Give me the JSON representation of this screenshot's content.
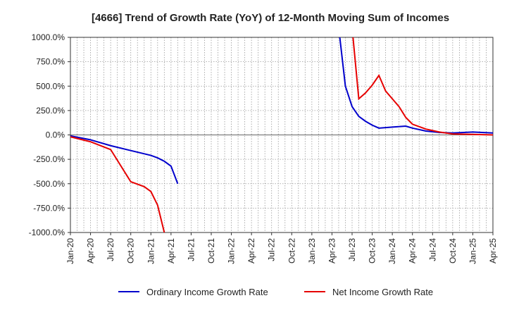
{
  "chart_data": {
    "type": "line",
    "title": "[4666]  Trend of Growth Rate (YoY) of 12-Month Moving Sum of Incomes",
    "xlabel": "",
    "ylabel": "",
    "ylim": [
      -1000,
      1000
    ],
    "y_ticks": [
      "1000.0%",
      "750.0%",
      "500.0%",
      "250.0%",
      "0.0%",
      "-250.0%",
      "-500.0%",
      "-750.0%",
      "-1000.0%"
    ],
    "y_tick_values": [
      1000,
      750,
      500,
      250,
      0,
      -250,
      -500,
      -750,
      -1000
    ],
    "x_ticks": [
      "Jan-20",
      "Apr-20",
      "Jul-20",
      "Oct-20",
      "Jan-21",
      "Apr-21",
      "Jul-21",
      "Oct-21",
      "Jan-22",
      "Apr-22",
      "Jul-22",
      "Oct-22",
      "Jan-23",
      "Apr-23",
      "Jul-23",
      "Oct-23",
      "Jan-24",
      "Apr-24",
      "Jul-24",
      "Oct-24",
      "Jan-25",
      "Apr-25"
    ],
    "grid": true,
    "legend_position": "bottom",
    "series": [
      {
        "name": "Ordinary Income Growth Rate",
        "color": "#0000cc",
        "points": [
          [
            "Jan-20",
            -10
          ],
          [
            "Apr-20",
            -50
          ],
          [
            "Jul-20",
            -110
          ],
          [
            "Oct-20",
            -160
          ],
          [
            "Jan-21",
            -210
          ],
          [
            "Feb-21",
            -235
          ],
          [
            "Mar-21",
            -270
          ],
          [
            "Apr-21",
            -320
          ],
          [
            "May-21",
            -500
          ]
        ],
        "points_b": [
          [
            "May-23",
            1100
          ],
          [
            "Jun-23",
            500
          ],
          [
            "Jul-23",
            290
          ],
          [
            "Aug-23",
            190
          ],
          [
            "Sep-23",
            140
          ],
          [
            "Oct-23",
            100
          ],
          [
            "Nov-23",
            70
          ],
          [
            "Jan-24",
            80
          ],
          [
            "Mar-24",
            90
          ],
          [
            "Apr-24",
            70
          ],
          [
            "Jun-24",
            40
          ],
          [
            "Aug-24",
            25
          ],
          [
            "Oct-24",
            20
          ],
          [
            "Jan-25",
            30
          ],
          [
            "Apr-25",
            20
          ]
        ]
      },
      {
        "name": "Net Income Growth Rate",
        "color": "#e60000",
        "points": [
          [
            "Jan-20",
            -20
          ],
          [
            "Apr-20",
            -70
          ],
          [
            "Jul-20",
            -150
          ],
          [
            "Oct-20",
            -480
          ],
          [
            "Dec-20",
            -530
          ],
          [
            "Jan-21",
            -580
          ],
          [
            "Feb-21",
            -720
          ],
          [
            "Mar-21",
            -1000
          ]
        ],
        "points_b": [
          [
            "Jul-23",
            1100
          ],
          [
            "Aug-23",
            370
          ],
          [
            "Sep-23",
            430
          ],
          [
            "Oct-23",
            510
          ],
          [
            "Nov-23",
            610
          ],
          [
            "Dec-23",
            450
          ],
          [
            "Jan-24",
            370
          ],
          [
            "Feb-24",
            290
          ],
          [
            "Mar-24",
            180
          ],
          [
            "Apr-24",
            110
          ],
          [
            "Jun-24",
            60
          ],
          [
            "Aug-24",
            30
          ],
          [
            "Oct-24",
            10
          ],
          [
            "Jan-25",
            5
          ],
          [
            "Apr-25",
            0
          ]
        ]
      }
    ]
  }
}
